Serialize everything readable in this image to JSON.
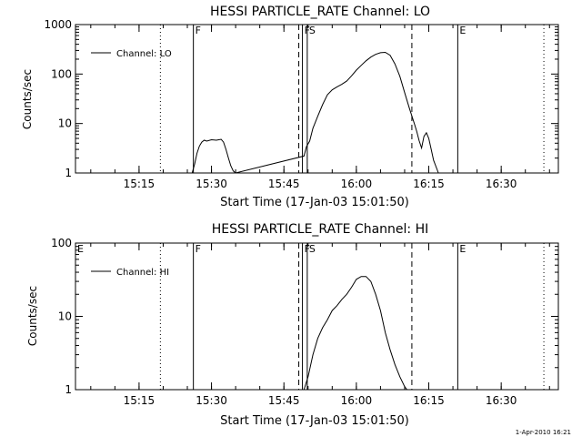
{
  "chart_data": [
    {
      "type": "line",
      "title": "HESSI PARTICLE_RATE Channel: LO",
      "xlabel": "Start Time (17-Jan-03 15:01:50)",
      "ylabel": "Counts/sec",
      "y_scale": "log",
      "ylim": [
        1,
        1000
      ],
      "y_ticks": [
        "1",
        "10",
        "100",
        "1000"
      ],
      "x_unit": "minutes",
      "xlim": [
        "15:01:50",
        "16:41:50"
      ],
      "x_ticks": [
        "15:15",
        "15:30",
        "15:45",
        "16:00",
        "16:15",
        "16:30"
      ],
      "legend_position": "top-left",
      "series": [
        {
          "name": "Channel: LO",
          "x": [
            "15:26:00",
            "15:26:30",
            "15:27:00",
            "15:27:30",
            "15:28:00",
            "15:28:30",
            "15:29:00",
            "15:30:00",
            "15:31:00",
            "15:32:00",
            "15:32:30",
            "15:33:00",
            "15:33:30",
            "15:34:00",
            "15:34:30",
            "15:35:00",
            "15:49:10",
            "15:49:40",
            "15:50:20",
            "15:51:00",
            "15:52:00",
            "15:53:00",
            "15:54:00",
            "15:55:00",
            "15:56:00",
            "15:57:00",
            "15:58:00",
            "15:59:00",
            "16:00:00",
            "16:01:00",
            "16:02:00",
            "16:03:00",
            "16:04:00",
            "16:05:00",
            "16:06:00",
            "16:07:00",
            "16:08:00",
            "16:09:00",
            "16:10:00",
            "16:11:00",
            "16:12:00",
            "16:12:30",
            "16:13:00",
            "16:13:30",
            "16:14:00",
            "16:14:30",
            "16:15:00",
            "16:15:30",
            "16:16:00",
            "16:17:00"
          ],
          "y": [
            1.0,
            1.5,
            2.5,
            3.5,
            4.2,
            4.6,
            4.4,
            4.7,
            4.6,
            4.8,
            4.2,
            3.0,
            2.0,
            1.4,
            1.1,
            1.0,
            2.2,
            3.4,
            4.4,
            8,
            14,
            24,
            38,
            48,
            55,
            62,
            72,
            92,
            120,
            150,
            185,
            220,
            250,
            270,
            275,
            240,
            160,
            90,
            42,
            20,
            10,
            7,
            4.5,
            3.2,
            5.5,
            6.5,
            5,
            3,
            1.8,
            1.0
          ]
        }
      ],
      "markers": [
        {
          "label": "F",
          "time": "15:26:15"
        },
        {
          "label": "F",
          "time": "15:48:50"
        },
        {
          "label": "S",
          "time": "15:49:50"
        },
        {
          "label": "E",
          "time": "16:21:00"
        }
      ],
      "dashed_lines": [
        "15:48:50",
        "16:12:15"
      ],
      "dotted_lines": [
        "15:19:25",
        "16:38:50"
      ]
    },
    {
      "type": "line",
      "title": "HESSI PARTICLE_RATE Channel: HI",
      "xlabel": "Start Time (17-Jan-03 15:01:50)",
      "ylabel": "Counts/sec",
      "y_scale": "log",
      "ylim": [
        1,
        100
      ],
      "y_ticks": [
        "1",
        "10",
        "100"
      ],
      "x_unit": "minutes",
      "xlim": [
        "15:01:50",
        "16:41:50"
      ],
      "x_ticks": [
        "15:15",
        "15:30",
        "15:45",
        "16:00",
        "16:15",
        "16:30"
      ],
      "legend_position": "top-left",
      "series": [
        {
          "name": "Channel: HI",
          "x": [
            "15:49:10",
            "15:50:00",
            "15:51:00",
            "15:52:00",
            "15:53:00",
            "15:54:00",
            "15:55:00",
            "15:56:00",
            "15:57:00",
            "15:58:00",
            "15:59:00",
            "16:00:00",
            "16:01:00",
            "16:02:00",
            "16:03:00",
            "16:04:00",
            "16:05:00",
            "16:06:00",
            "16:07:00",
            "16:08:00",
            "16:09:00",
            "16:10:00",
            "16:10:30"
          ],
          "y": [
            1.0,
            1.5,
            3.0,
            5,
            7,
            9,
            12,
            14,
            17,
            20,
            25,
            32,
            35,
            35,
            30,
            20,
            12,
            6,
            3.5,
            2.2,
            1.5,
            1.1,
            1.0
          ]
        }
      ],
      "markers": [
        {
          "label": "E",
          "time": "15:01:50"
        },
        {
          "label": "F",
          "time": "15:26:15"
        },
        {
          "label": "F",
          "time": "15:48:50"
        },
        {
          "label": "S",
          "time": "15:49:50"
        },
        {
          "label": "E",
          "time": "16:21:00"
        }
      ],
      "dashed_lines": [
        "15:48:50",
        "16:12:15"
      ],
      "dotted_lines": [
        "15:19:25",
        "16:38:50"
      ]
    }
  ],
  "footer": {
    "timestamp": "1-Apr-2010 16:21"
  }
}
